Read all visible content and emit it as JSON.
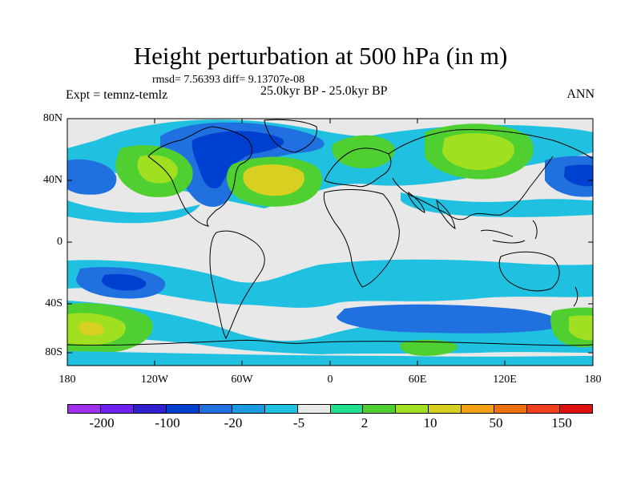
{
  "header": {
    "title": "Height perturbation at 500 hPa (in m)",
    "stats": "rmsd= 7.56393 diff= 9.13707e-08",
    "experiment": "Expt = temnz-temlz",
    "period": "25.0kyr BP - 25.0kyr BP",
    "season": "ANN"
  },
  "map": {
    "lat_labels": [
      "80N",
      "40N",
      "0",
      "40S",
      "80S"
    ],
    "lon_labels": [
      "180",
      "120W",
      "60W",
      "0",
      "60E",
      "120E",
      "180"
    ],
    "background_color": "#e8e8e8"
  },
  "colorbar": {
    "colors": [
      "#a030f0",
      "#7020f0",
      "#3020d0",
      "#0040d0",
      "#2070e0",
      "#1c9ae0",
      "#20c0e0",
      "#e8e8e8",
      "#20e090",
      "#50d030",
      "#a0e020",
      "#d8d020",
      "#f0a010",
      "#f07010",
      "#f04020",
      "#e01010"
    ],
    "labels": [
      "-200",
      "-100",
      "-20",
      "-5",
      "2",
      "10",
      "50",
      "150"
    ]
  }
}
